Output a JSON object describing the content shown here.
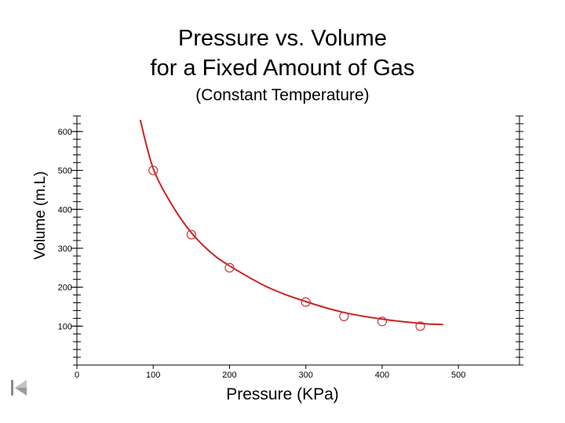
{
  "title_line1": "Pressure vs. Volume",
  "title_line2": "for a Fixed Amount of Gas",
  "subtitle": "(Constant Temperature)",
  "nav": {
    "icon": "skip-back-icon"
  },
  "chart_data": {
    "type": "scatter",
    "title": "Pressure vs. Volume for a Fixed Amount of Gas",
    "subtitle": "(Constant Temperature)",
    "xlabel": "Pressure (KPa)",
    "ylabel": "Volume (m.L)",
    "xlim": [
      0,
      580
    ],
    "ylim": [
      0,
      640
    ],
    "x_ticks": [
      0,
      100,
      200,
      300,
      400,
      500
    ],
    "y_ticks": [
      100,
      200,
      300,
      400,
      500,
      600
    ],
    "grid": false,
    "points": {
      "x": [
        100,
        150,
        200,
        300,
        350,
        400,
        450
      ],
      "y": [
        500,
        335,
        250,
        162,
        125,
        112,
        100
      ]
    },
    "fit_curve": {
      "x": [
        83,
        100,
        125,
        150,
        175,
        200,
        250,
        300,
        350,
        400,
        450,
        480
      ],
      "y": [
        630,
        505,
        410,
        340,
        290,
        255,
        200,
        163,
        135,
        118,
        107,
        104
      ]
    },
    "colors": {
      "points": "#cc3333",
      "curve": "#cc2222",
      "axis": "#000000"
    }
  }
}
